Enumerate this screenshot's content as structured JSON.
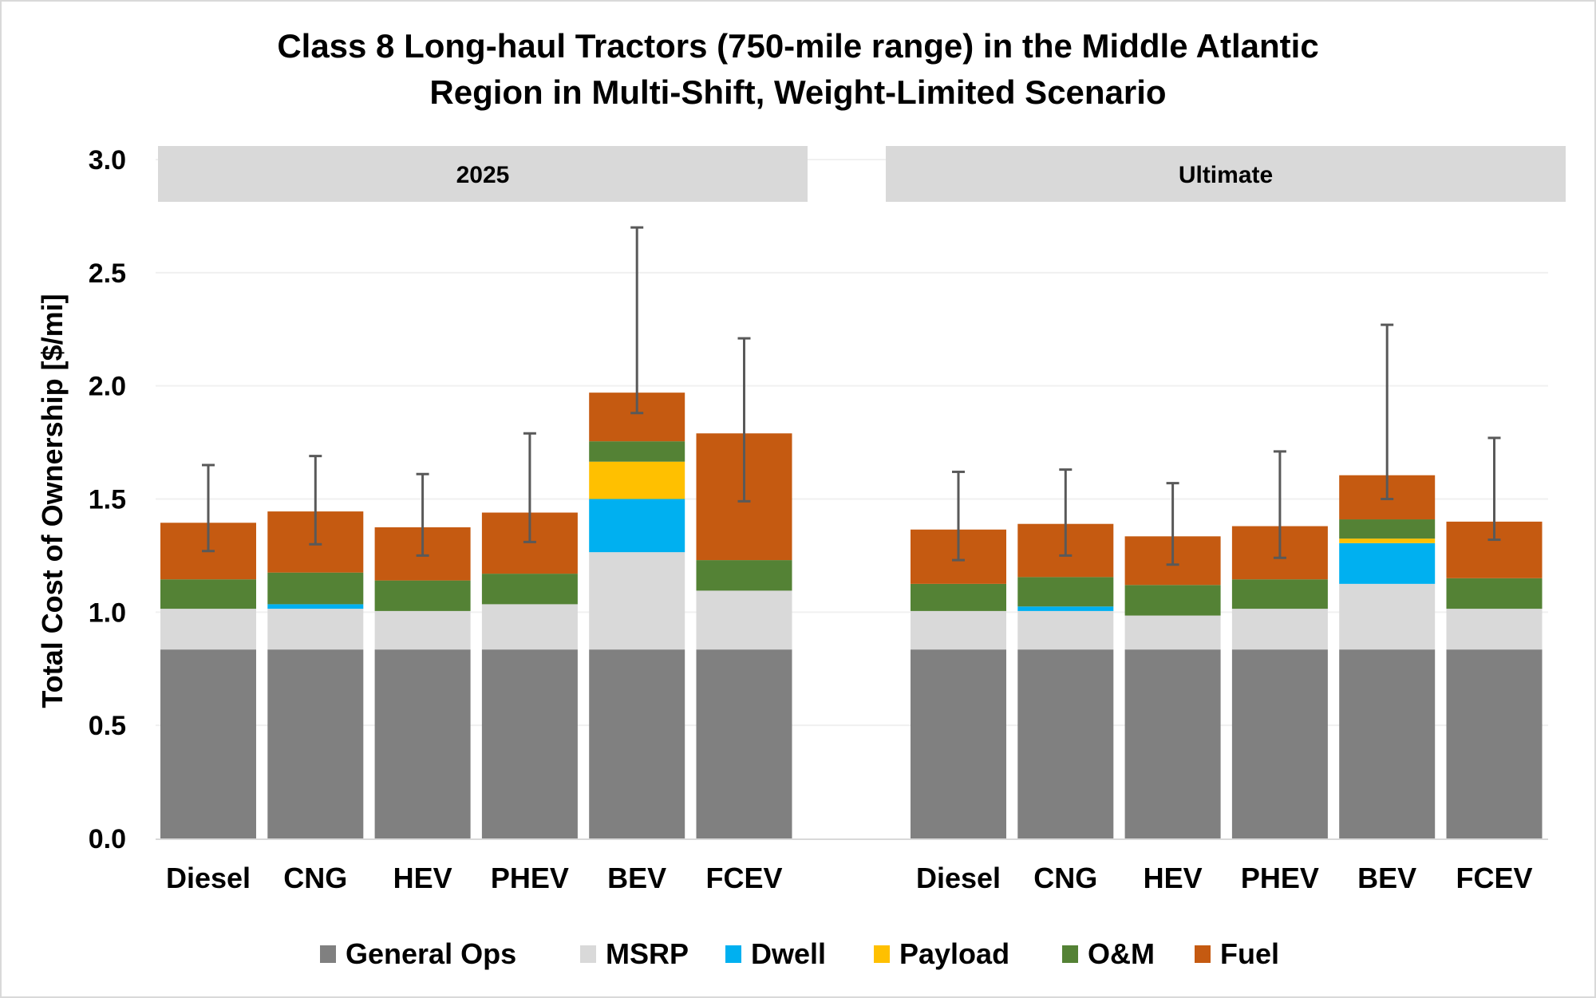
{
  "chart_data": {
    "type": "bar",
    "stacked": true,
    "title_lines": [
      "Class 8 Long-haul Tractors (750-mile range) in the Middle Atlantic",
      "Region in Multi-Shift, Weight-Limited Scenario"
    ],
    "xlabel": "",
    "ylabel": "Total Cost of Ownership [$/mi]",
    "ylim": [
      0,
      3.0
    ],
    "yticks": [
      "0.0",
      "0.5",
      "1.0",
      "1.5",
      "2.0",
      "2.5",
      "3.0"
    ],
    "ytick_values": [
      0,
      0.5,
      1.0,
      1.5,
      2.0,
      2.5,
      3.0
    ],
    "grid": true,
    "legend_position": "bottom",
    "categories": [
      "Diesel",
      "CNG",
      "HEV",
      "PHEV",
      "BEV",
      "FCEV"
    ],
    "series": [
      {
        "name": "General Ops",
        "color": "#808080"
      },
      {
        "name": "MSRP",
        "color": "#d9d9d9"
      },
      {
        "name": "Dwell",
        "color": "#00b0f0"
      },
      {
        "name": "Payload",
        "color": "#ffc000"
      },
      {
        "name": "O&M",
        "color": "#548235"
      },
      {
        "name": "Fuel",
        "color": "#c55a11"
      }
    ],
    "panels": [
      {
        "label": "2025",
        "values": {
          "General Ops": [
            0.835,
            0.835,
            0.835,
            0.835,
            0.835,
            0.835
          ],
          "MSRP": [
            0.18,
            0.18,
            0.17,
            0.2,
            0.43,
            0.26
          ],
          "Dwell": [
            0,
            0.02,
            0,
            0,
            0.235,
            0
          ],
          "Payload": [
            0,
            0,
            0,
            0,
            0.165,
            0
          ],
          "O&M": [
            0.13,
            0.14,
            0.135,
            0.135,
            0.09,
            0.135
          ],
          "Fuel": [
            0.25,
            0.27,
            0.235,
            0.27,
            0.215,
            0.56
          ]
        },
        "error_low": [
          1.27,
          1.3,
          1.25,
          1.31,
          1.88,
          1.49
        ],
        "error_high": [
          1.65,
          1.69,
          1.61,
          1.79,
          2.7,
          2.21
        ]
      },
      {
        "label": "Ultimate",
        "values": {
          "General Ops": [
            0.835,
            0.835,
            0.835,
            0.835,
            0.835,
            0.835
          ],
          "MSRP": [
            0.17,
            0.17,
            0.15,
            0.18,
            0.29,
            0.18
          ],
          "Dwell": [
            0,
            0.02,
            0,
            0,
            0.18,
            0
          ],
          "Payload": [
            0,
            0,
            0,
            0,
            0.02,
            0
          ],
          "O&M": [
            0.12,
            0.13,
            0.135,
            0.13,
            0.085,
            0.135
          ],
          "Fuel": [
            0.24,
            0.235,
            0.215,
            0.235,
            0.195,
            0.25
          ]
        },
        "error_low": [
          1.23,
          1.25,
          1.21,
          1.24,
          1.5,
          1.32
        ],
        "error_high": [
          1.62,
          1.63,
          1.57,
          1.71,
          2.27,
          1.77
        ]
      }
    ],
    "colors": {
      "gridline": "#f0f0f0",
      "axis": "#d9d9d9",
      "facet_strip": "#d9d9d9",
      "error_bar": "#595959"
    }
  }
}
